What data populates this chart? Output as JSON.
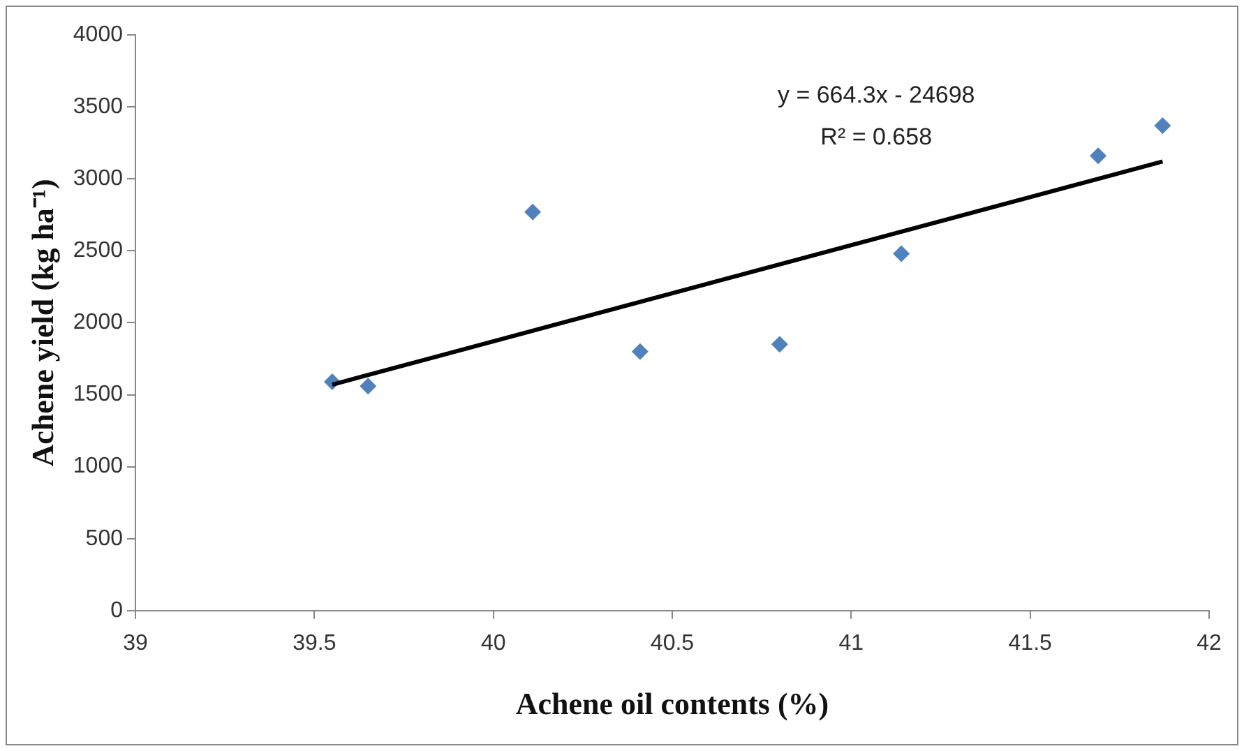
{
  "chart_data": {
    "type": "scatter",
    "xlabel": "Achene oil contents (%)",
    "ylabel": "Achene yield (kg ha⁻¹)",
    "xlim": [
      39,
      42
    ],
    "xticks": [
      39,
      39.5,
      40,
      40.5,
      41,
      41.5,
      42
    ],
    "ylim": [
      0,
      4000
    ],
    "yticks": [
      0,
      500,
      1000,
      1500,
      2000,
      2500,
      3000,
      3500,
      4000
    ],
    "grid": false,
    "legend": false,
    "series": [
      {
        "type": "scatter",
        "color": "#4f81bd",
        "marker": "diamond",
        "x": [
          39.55,
          39.65,
          40.11,
          40.41,
          40.8,
          41.14,
          41.69,
          41.87
        ],
        "values": [
          1590,
          1560,
          2770,
          1800,
          1850,
          2480,
          3160,
          3370
        ]
      },
      {
        "type": "line",
        "color": "#000000",
        "x": [
          39.55,
          41.87
        ],
        "values": [
          1570,
          3120
        ],
        "line_style": "solid"
      }
    ],
    "annotations": [
      "y = 664.3x - 24698",
      "R² = 0.658"
    ]
  }
}
